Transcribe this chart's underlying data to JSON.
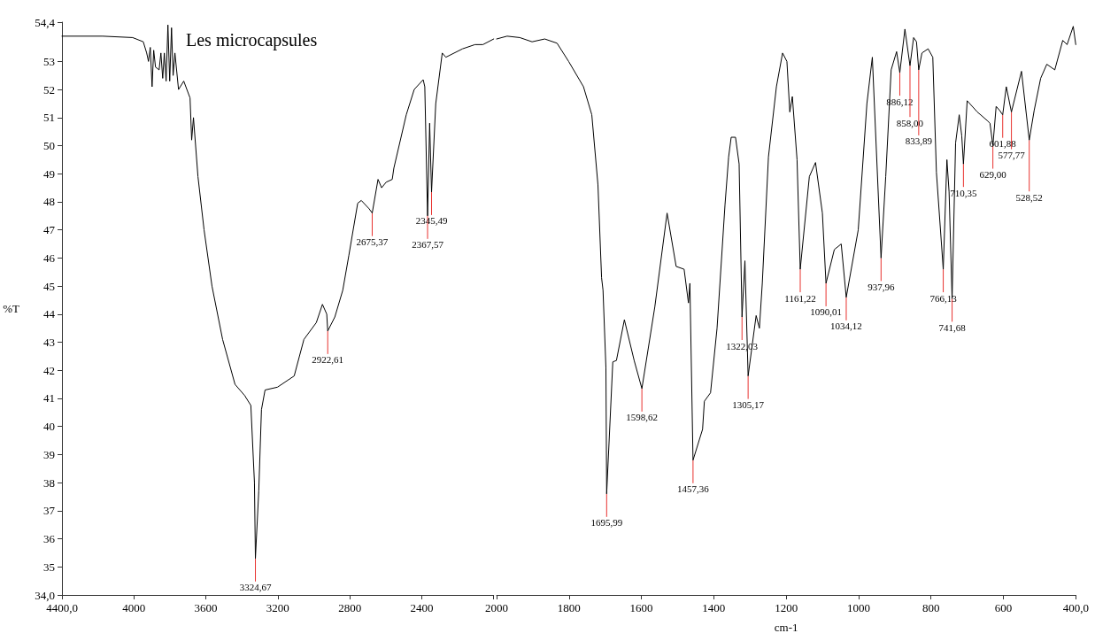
{
  "chart_data": [
    {
      "type": "line",
      "title": "Les microcapsules",
      "ylabel": "%T",
      "color": "#000000",
      "marker": "none",
      "line_style": "solid",
      "xlim": [
        4400,
        2000
      ],
      "xticks": [
        {
          "value": 4400,
          "label": "4400,0"
        },
        4000,
        3600,
        3200,
        2800,
        2400,
        {
          "value": 2000,
          "label": null
        }
      ],
      "ylim": [
        34,
        54.4
      ],
      "yticks": [
        {
          "value": 34,
          "label": "34,0"
        },
        35,
        36,
        37,
        38,
        39,
        40,
        41,
        42,
        43,
        44,
        45,
        46,
        47,
        48,
        49,
        50,
        51,
        52,
        53,
        {
          "value": 54.4,
          "label": "54,4"
        }
      ],
      "x": [
        4400,
        4174,
        4007,
        3948,
        3929,
        3919,
        3909,
        3899,
        3890,
        3880,
        3860,
        3850,
        3840,
        3831,
        3821,
        3811,
        3801,
        3791,
        3782,
        3772,
        3752,
        3723,
        3688,
        3679,
        3669,
        3644,
        3610,
        3566,
        3507,
        3438,
        3384,
        3350,
        3330,
        3324.67,
        3306,
        3291,
        3271,
        3202,
        3109,
        3055,
        2986,
        2952,
        2928,
        2922.61,
        2883,
        2839,
        2805,
        2756,
        2736,
        2692,
        2675.37,
        2643,
        2623,
        2598,
        2564,
        2555,
        2486,
        2442,
        2392,
        2383,
        2367.57,
        2356,
        2345.49,
        2322,
        2286,
        2266,
        2173,
        2104,
        2060,
        2000
      ],
      "values": [
        53.9,
        53.9,
        53.85,
        53.7,
        53.3,
        53.0,
        53.5,
        52.1,
        53.4,
        52.8,
        52.7,
        53.3,
        52.4,
        53.3,
        52.3,
        54.3,
        52.3,
        54.2,
        52.5,
        53.3,
        52.0,
        52.3,
        51.7,
        50.2,
        51.0,
        48.9,
        47.0,
        45.0,
        43.1,
        41.5,
        41.1,
        40.75,
        38.0,
        35.3,
        37.7,
        40.6,
        41.3,
        41.4,
        41.8,
        43.1,
        43.7,
        44.35,
        44.0,
        43.4,
        43.9,
        44.85,
        46.1,
        47.95,
        48.05,
        47.75,
        47.6,
        48.8,
        48.5,
        48.7,
        48.8,
        49.2,
        51.1,
        52.0,
        52.35,
        52.1,
        47.5,
        50.8,
        48.35,
        51.5,
        53.3,
        53.15,
        53.45,
        53.6,
        53.6,
        53.8
      ],
      "annotations": [
        {
          "text": "3324,67",
          "x": 3324.67,
          "y": 35.3
        },
        {
          "text": "2922,61",
          "x": 2922.61,
          "y": 43.4
        },
        {
          "text": "2675,37",
          "x": 2675.37,
          "y": 47.6
        },
        {
          "text": "2367,57",
          "x": 2367.57,
          "y": 47.5
        },
        {
          "text": "2345,49",
          "x": 2345.49,
          "y": 48.35
        }
      ]
    },
    {
      "type": "line",
      "xlabel": "cm-1",
      "color": "#000000",
      "marker": "none",
      "line_style": "solid",
      "tick_labels": "x",
      "xlim": [
        2000,
        400
      ],
      "xticks": [
        2000,
        1800,
        1600,
        1400,
        1200,
        1000,
        800,
        600,
        {
          "value": 400,
          "label": "400,0"
        }
      ],
      "ylim": [
        34,
        54.4
      ],
      "x": [
        2000,
        1971,
        1936,
        1902,
        1867,
        1833,
        1801,
        1760,
        1737,
        1720,
        1710,
        1706,
        1698,
        1695.99,
        1679,
        1669,
        1647,
        1620,
        1598.62,
        1563,
        1529,
        1504,
        1482,
        1470,
        1466,
        1457.36,
        1431,
        1426,
        1409,
        1391,
        1369,
        1359,
        1352,
        1340,
        1330,
        1322.03,
        1314,
        1305.17,
        1283,
        1274,
        1266,
        1249,
        1227,
        1210,
        1198,
        1190,
        1183,
        1170,
        1161.22,
        1136,
        1119,
        1100,
        1090.01,
        1067,
        1048,
        1034.12,
        1001,
        977,
        962,
        937.96,
        925,
        910,
        895,
        886.12,
        872,
        858,
        848,
        840,
        833.89,
        825,
        808,
        795,
        785,
        766.13,
        756,
        750,
        741.68,
        732,
        722,
        715,
        710.35,
        700,
        672,
        645,
        637,
        629,
        620,
        610,
        601.88,
        592,
        577.77,
        550,
        528.52,
        515,
        497,
        480,
        458,
        436,
        424,
        407,
        400
      ],
      "values": [
        53.8,
        53.9,
        53.85,
        53.7,
        53.8,
        53.65,
        53.0,
        52.1,
        51.1,
        48.6,
        45.3,
        44.85,
        42.1,
        37.6,
        42.3,
        42.35,
        43.8,
        42.35,
        41.35,
        44.25,
        47.6,
        45.7,
        45.6,
        44.4,
        45.1,
        38.8,
        39.9,
        40.9,
        41.2,
        43.5,
        47.9,
        49.6,
        50.3,
        50.3,
        49.35,
        43.9,
        45.9,
        41.8,
        43.95,
        43.5,
        45.1,
        49.6,
        52.1,
        53.3,
        53.0,
        51.2,
        51.75,
        49.5,
        45.6,
        48.9,
        49.4,
        47.6,
        45.1,
        46.3,
        46.5,
        44.6,
        47.0,
        51.5,
        53.15,
        46.0,
        48.9,
        52.7,
        53.35,
        52.6,
        54.15,
        52.85,
        53.85,
        53.7,
        52.7,
        53.3,
        53.45,
        53.15,
        49.05,
        45.6,
        49.5,
        48.35,
        44.55,
        50.1,
        51.1,
        50.35,
        49.35,
        51.6,
        51.2,
        50.9,
        50.8,
        50.0,
        51.4,
        51.25,
        51.1,
        52.1,
        51.2,
        52.65,
        50.2,
        51.25,
        52.4,
        52.9,
        52.7,
        53.75,
        53.6,
        54.25,
        53.6
      ],
      "annotations": [
        {
          "text": "1695,99",
          "x": 1695.99,
          "y": 37.6
        },
        {
          "text": "1598,62",
          "x": 1598.62,
          "y": 41.35
        },
        {
          "text": "1457,36",
          "x": 1457.36,
          "y": 38.8
        },
        {
          "text": "1322,03",
          "x": 1322.03,
          "y": 43.9
        },
        {
          "text": "1305,17",
          "x": 1305.17,
          "y": 41.8
        },
        {
          "text": "1161,22",
          "x": 1161.22,
          "y": 45.6
        },
        {
          "text": "1090,01",
          "x": 1090.01,
          "y": 45.1
        },
        {
          "text": "1034,12",
          "x": 1034.12,
          "y": 44.6
        },
        {
          "text": "937,96",
          "x": 937.96,
          "y": 46.0
        },
        {
          "text": "886,12",
          "x": 886.12,
          "y": 52.6
        },
        {
          "text": "858,00",
          "x": 858,
          "y": 52.85
        },
        {
          "text": "833,89",
          "x": 833.89,
          "y": 52.7
        },
        {
          "text": "766,13",
          "x": 766.13,
          "y": 45.6
        },
        {
          "text": "741,68",
          "x": 741.68,
          "y": 44.55
        },
        {
          "text": "710,35",
          "x": 710.35,
          "y": 49.35
        },
        {
          "text": "629,00",
          "x": 629,
          "y": 50.0
        },
        {
          "text": "601,88",
          "x": 601.88,
          "y": 51.1
        },
        {
          "text": "577,77",
          "x": 577.77,
          "y": 51.2
        },
        {
          "text": "528,52",
          "x": 528.52,
          "y": 50.2
        }
      ]
    }
  ]
}
